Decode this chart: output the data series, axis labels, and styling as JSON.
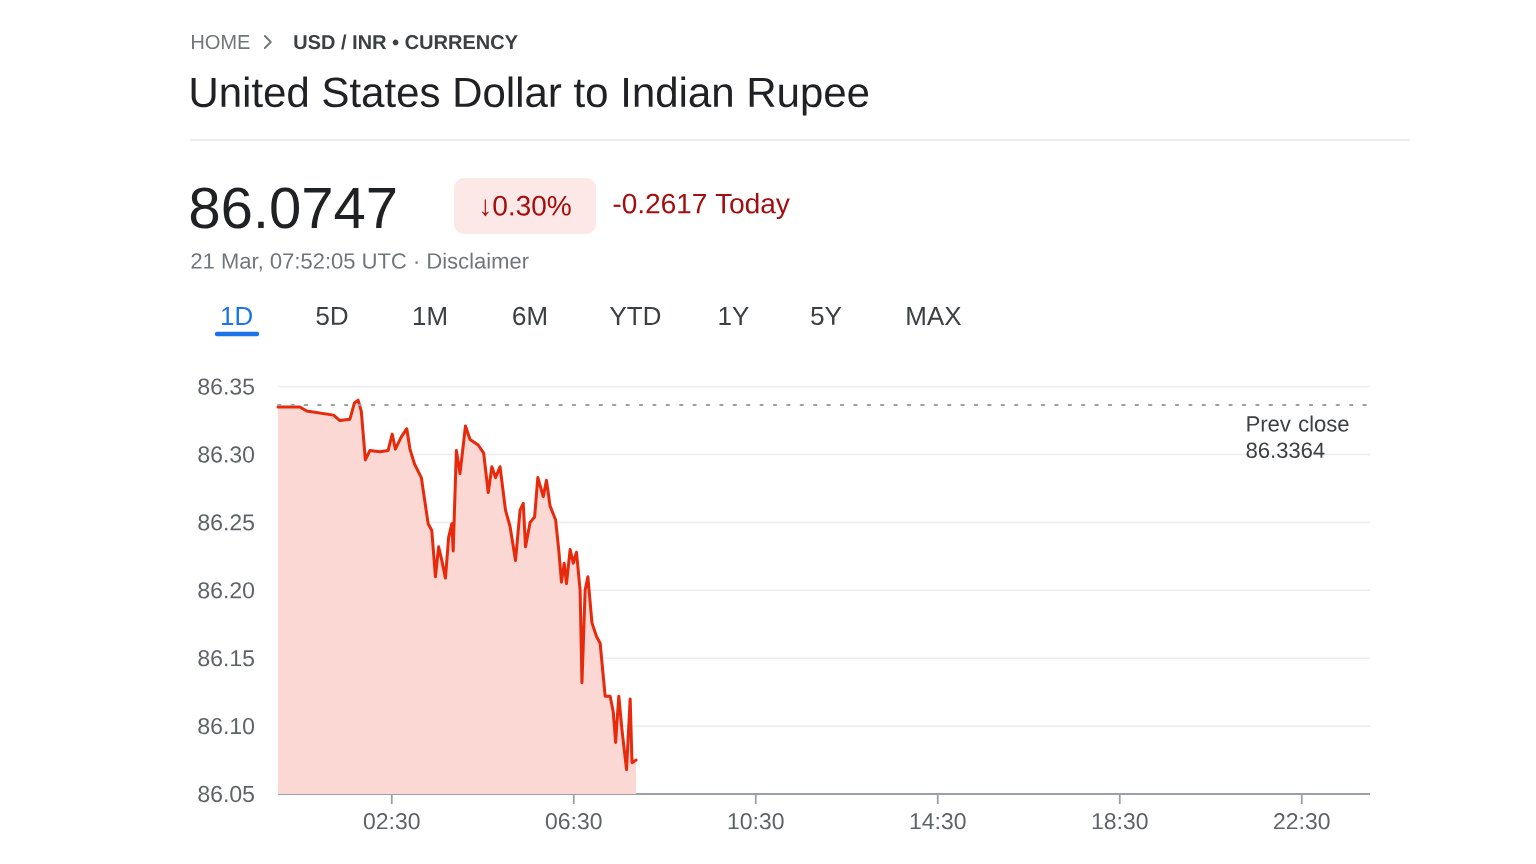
{
  "chart_data": {
    "type": "area",
    "title": "United States Dollar to Indian Rupee",
    "annotations": [
      "HOME",
      "USD / INR • CURRENCY",
      "86.0747",
      "↓0.30%",
      "-0.2617 Today",
      "21 Mar, 07:52:05 UTC · Disclaimer",
      "1D",
      "5D",
      "1M",
      "6M",
      "YTD",
      "1Y",
      "5Y",
      "MAX"
    ],
    "x": [
      0.0,
      0.48,
      0.63,
      1.22,
      1.36,
      1.58,
      1.68,
      1.76,
      1.83,
      1.92,
      2.02,
      2.24,
      2.42,
      2.51,
      2.58,
      2.71,
      2.83,
      2.9,
      3.0,
      3.15,
      3.3,
      3.38,
      3.46,
      3.53,
      3.6,
      3.68,
      3.75,
      3.82,
      3.85,
      3.92,
      4.0,
      4.12,
      4.22,
      4.4,
      4.52,
      4.62,
      4.7,
      4.78,
      4.88,
      5.0,
      5.1,
      5.22,
      5.32,
      5.39,
      5.44,
      5.54,
      5.64,
      5.71,
      5.83,
      5.9,
      5.98,
      6.1,
      6.17,
      6.23,
      6.29,
      6.34,
      6.42,
      6.49,
      6.56,
      6.64,
      6.68,
      6.75,
      6.81,
      6.9,
      7.0,
      7.08,
      7.19,
      7.3,
      7.37,
      7.42,
      7.49,
      7.56,
      7.66,
      7.74,
      7.78,
      7.87
    ],
    "series": [
      {
        "color": "#e8290b",
        "values": [
          86.335,
          86.335,
          86.332,
          86.329,
          86.325,
          86.326,
          86.338,
          86.34,
          86.332,
          86.296,
          86.303,
          86.302,
          86.303,
          86.315,
          86.304,
          86.313,
          86.319,
          86.304,
          86.293,
          86.283,
          86.249,
          86.244,
          86.21,
          86.232,
          86.222,
          86.209,
          86.239,
          86.249,
          86.229,
          86.303,
          86.286,
          86.321,
          86.311,
          86.307,
          86.301,
          86.272,
          86.291,
          86.283,
          86.291,
          86.259,
          86.247,
          86.222,
          86.259,
          86.264,
          86.232,
          86.25,
          86.254,
          86.283,
          86.269,
          86.281,
          86.262,
          86.252,
          86.23,
          86.206,
          86.22,
          86.205,
          86.23,
          86.22,
          86.228,
          86.2,
          86.132,
          86.2,
          86.21,
          86.176,
          86.166,
          86.161,
          86.122,
          86.122,
          86.11,
          86.088,
          86.122,
          86.097,
          86.068,
          86.12,
          86.073,
          86.075
        ]
      }
    ],
    "xlim": [
      0,
      24
    ],
    "xticks": [
      {
        "value": 2.5,
        "label": "02:30"
      },
      {
        "value": 6.5,
        "label": "06:30"
      },
      {
        "value": 10.5,
        "label": "10:30"
      },
      {
        "value": 14.5,
        "label": "14:30"
      },
      {
        "value": 18.5,
        "label": "18:30"
      },
      {
        "value": 22.5,
        "label": "22:30"
      }
    ],
    "ylim": [
      86.05,
      86.35
    ],
    "yticks": [
      86.05,
      {
        "value": 86.1,
        "label": "86.10"
      },
      86.15,
      {
        "value": 86.2,
        "label": "86.20"
      },
      86.25,
      {
        "value": 86.3,
        "label": "86.30"
      },
      86.35
    ],
    "grid": "y",
    "ref_lines": [
      {
        "axis": "y",
        "value": 86.3364,
        "label": "Prev close 86.3364",
        "line_style": "dotted",
        "color": "#9aa0a6"
      }
    ]
  }
}
